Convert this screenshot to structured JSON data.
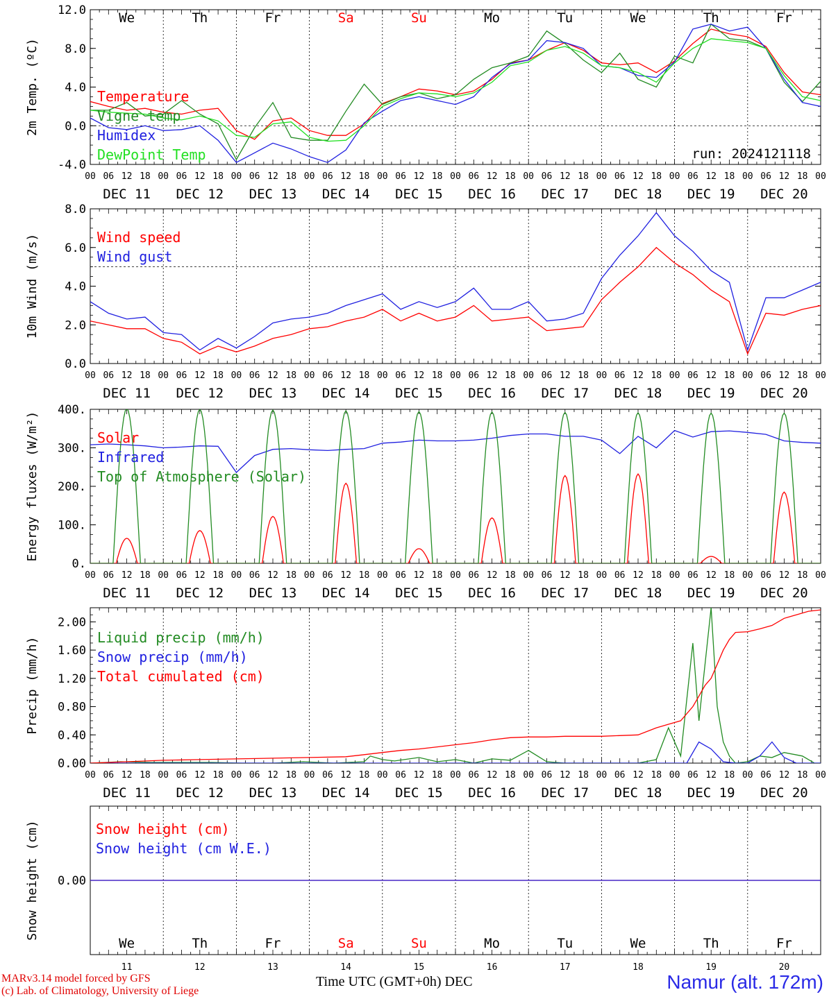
{
  "footer": {
    "model_line": "MARv3.14 model forced by GFS",
    "credit_line": "(c) Lab. of Climatology, University of Liege",
    "xaxis_title": "Time UTC (GMT+0h) DEC",
    "station": "Namur (alt. 172m)"
  },
  "colors": {
    "red": "#ff0000",
    "green": "#228b22",
    "blue": "#2020e0",
    "lightgreen": "#22e022",
    "sunday": "#ff0000"
  },
  "chart_data": [
    {
      "type": "line",
      "id": "temp",
      "ylabel": "2m Temp. (ºC)",
      "ylim": [
        -4.0,
        12.0
      ],
      "yticks": [
        "-4.0",
        "0.0",
        "4.0",
        "8.0",
        "12.0"
      ],
      "ytick_values": [
        -4,
        0,
        4,
        8,
        12
      ],
      "ref_line": 0,
      "x_unit": "hours since 2024-12-11 00 UTC",
      "xlim": [
        0,
        240
      ],
      "weekdays_top": [
        "We",
        "Th",
        "Fr",
        "Sa",
        "Su",
        "Mo",
        "Tu",
        "We",
        "Th",
        "Fr"
      ],
      "run_label": "run: 2024121118",
      "series": [
        {
          "name": "Temperature",
          "color": "red",
          "x": [
            0,
            6,
            12,
            18,
            24,
            30,
            36,
            42,
            48,
            54,
            60,
            66,
            72,
            78,
            84,
            90,
            96,
            102,
            108,
            114,
            120,
            126,
            132,
            138,
            144,
            150,
            156,
            162,
            168,
            174,
            180,
            186,
            192,
            198,
            204,
            210,
            216,
            222,
            228,
            234,
            240
          ],
          "y": [
            2.5,
            2.0,
            1.6,
            1.8,
            1.4,
            1.2,
            1.6,
            1.8,
            -0.5,
            -1.4,
            0.5,
            0.8,
            -0.5,
            -1.0,
            -1.0,
            0.2,
            2.3,
            3.0,
            3.8,
            3.6,
            3.2,
            3.6,
            4.8,
            6.5,
            6.8,
            7.8,
            8.6,
            7.8,
            6.5,
            6.3,
            6.5,
            5.5,
            6.7,
            8.5,
            10.0,
            9.5,
            9.2,
            8.2,
            5.5,
            3.5,
            3.2
          ]
        },
        {
          "name": "Vigne temp",
          "color": "green",
          "x": [
            0,
            6,
            12,
            18,
            24,
            30,
            36,
            42,
            48,
            54,
            60,
            66,
            72,
            78,
            84,
            90,
            96,
            102,
            108,
            114,
            120,
            126,
            132,
            138,
            144,
            150,
            156,
            162,
            168,
            174,
            180,
            186,
            192,
            198,
            204,
            210,
            216,
            222,
            228,
            234,
            240
          ],
          "y": [
            1.6,
            1.6,
            2.4,
            1.0,
            1.2,
            2.6,
            1.2,
            0.2,
            -3.5,
            -0.2,
            2.4,
            -1.2,
            -1.5,
            -1.5,
            1.5,
            4.3,
            2.2,
            3.0,
            3.4,
            2.8,
            3.2,
            4.8,
            6.0,
            6.5,
            7.2,
            9.8,
            8.5,
            6.8,
            5.5,
            7.5,
            4.8,
            4.0,
            7.2,
            6.5,
            10.5,
            9.0,
            8.8,
            8.0,
            4.5,
            2.5,
            4.6
          ]
        },
        {
          "name": "Humidex",
          "color": "blue",
          "x": [
            0,
            6,
            12,
            18,
            24,
            30,
            36,
            42,
            48,
            54,
            60,
            66,
            72,
            78,
            84,
            90,
            96,
            102,
            108,
            114,
            120,
            126,
            132,
            138,
            144,
            150,
            156,
            162,
            168,
            174,
            180,
            186,
            192,
            198,
            204,
            210,
            216,
            222,
            228,
            234,
            240
          ],
          "y": [
            0.8,
            -0.2,
            -0.4,
            0.0,
            -0.5,
            -0.4,
            0.0,
            -1.5,
            -3.8,
            -2.8,
            -1.8,
            -2.4,
            -3.2,
            -3.8,
            -2.5,
            0.3,
            1.5,
            2.6,
            3.0,
            2.6,
            2.2,
            3.0,
            5.0,
            6.4,
            6.8,
            8.8,
            8.6,
            8.0,
            6.2,
            6.0,
            5.2,
            5.0,
            6.6,
            10.0,
            10.5,
            9.8,
            10.2,
            8.0,
            4.8,
            2.4,
            2.0
          ]
        },
        {
          "name": "DewPoint Temp",
          "color": "lightgreen",
          "x": [
            0,
            6,
            12,
            18,
            24,
            30,
            36,
            42,
            48,
            54,
            60,
            66,
            72,
            78,
            84,
            90,
            96,
            102,
            108,
            114,
            120,
            126,
            132,
            138,
            144,
            150,
            156,
            162,
            168,
            174,
            180,
            186,
            192,
            198,
            204,
            210,
            216,
            222,
            228,
            234,
            240
          ],
          "y": [
            1.6,
            1.4,
            1.3,
            1.2,
            0.8,
            0.6,
            1.0,
            0.5,
            -1.0,
            -1.2,
            0.2,
            0.4,
            -1.2,
            -1.6,
            -1.5,
            0.0,
            2.0,
            2.8,
            3.4,
            3.3,
            3.0,
            3.4,
            4.5,
            6.2,
            6.6,
            7.8,
            8.2,
            7.5,
            6.2,
            6.0,
            5.5,
            4.5,
            6.5,
            8.0,
            9.0,
            8.8,
            8.6,
            8.0,
            5.2,
            3.0,
            2.6
          ]
        }
      ]
    },
    {
      "type": "line",
      "id": "wind",
      "ylabel": "10m Wind (m/s)",
      "ylim": [
        0.0,
        8.0
      ],
      "yticks": [
        "0.0",
        "2.0",
        "4.0",
        "6.0",
        "8.0"
      ],
      "ytick_values": [
        0,
        2,
        4,
        6,
        8
      ],
      "ref_line": 5,
      "xlim": [
        0,
        240
      ],
      "series": [
        {
          "name": "Wind speed",
          "color": "red",
          "x": [
            0,
            6,
            12,
            18,
            24,
            30,
            36,
            42,
            48,
            54,
            60,
            66,
            72,
            78,
            84,
            90,
            96,
            102,
            108,
            114,
            120,
            126,
            132,
            138,
            144,
            150,
            156,
            162,
            168,
            174,
            180,
            186,
            192,
            198,
            204,
            210,
            216,
            222,
            228,
            234,
            240
          ],
          "y": [
            2.2,
            2.0,
            1.8,
            1.8,
            1.3,
            1.1,
            0.5,
            0.9,
            0.6,
            0.9,
            1.3,
            1.5,
            1.8,
            1.9,
            2.2,
            2.4,
            2.8,
            2.2,
            2.6,
            2.2,
            2.4,
            3.0,
            2.2,
            2.3,
            2.4,
            1.7,
            1.8,
            1.9,
            3.3,
            4.2,
            5.0,
            6.0,
            5.2,
            4.6,
            3.8,
            3.2,
            0.5,
            2.6,
            2.5,
            2.8,
            3.0
          ]
        },
        {
          "name": "Wind gust",
          "color": "blue",
          "x": [
            0,
            6,
            12,
            18,
            24,
            30,
            36,
            42,
            48,
            54,
            60,
            66,
            72,
            78,
            84,
            90,
            96,
            102,
            108,
            114,
            120,
            126,
            132,
            138,
            144,
            150,
            156,
            162,
            168,
            174,
            180,
            186,
            192,
            198,
            204,
            210,
            216,
            222,
            228,
            234,
            240
          ],
          "y": [
            3.2,
            2.6,
            2.3,
            2.4,
            1.6,
            1.5,
            0.7,
            1.3,
            0.8,
            1.4,
            2.1,
            2.3,
            2.4,
            2.6,
            3.0,
            3.3,
            3.6,
            2.8,
            3.2,
            2.9,
            3.2,
            3.9,
            2.8,
            2.8,
            3.2,
            2.2,
            2.3,
            2.6,
            4.4,
            5.6,
            6.6,
            7.8,
            6.6,
            5.8,
            4.8,
            4.2,
            0.7,
            3.4,
            3.4,
            3.8,
            4.2
          ]
        }
      ]
    },
    {
      "type": "line",
      "id": "energy",
      "ylabel": "Energy fluxes (W/m²)",
      "ylim": [
        0,
        400
      ],
      "yticks": [
        "0.",
        "100.",
        "200.",
        "300.",
        "400."
      ],
      "ytick_values": [
        0,
        100,
        200,
        300,
        400
      ],
      "xlim": [
        0,
        240
      ],
      "series": [
        {
          "name": "Solar",
          "color": "red",
          "peaks": [
            {
              "day": 0,
              "max": 65
            },
            {
              "day": 1,
              "max": 85
            },
            {
              "day": 2,
              "max": 122
            },
            {
              "day": 3,
              "max": 208
            },
            {
              "day": 4,
              "max": 38
            },
            {
              "day": 5,
              "max": 118
            },
            {
              "day": 6,
              "max": 228
            },
            {
              "day": 7,
              "max": 232
            },
            {
              "day": 8,
              "max": 18
            },
            {
              "day": 9,
              "max": 185
            }
          ]
        },
        {
          "name": "Infrared",
          "color": "blue",
          "x": [
            0,
            6,
            12,
            18,
            24,
            30,
            36,
            42,
            48,
            54,
            60,
            66,
            72,
            78,
            84,
            90,
            96,
            102,
            108,
            114,
            120,
            126,
            132,
            138,
            144,
            150,
            156,
            162,
            168,
            174,
            180,
            186,
            192,
            198,
            204,
            210,
            216,
            222,
            228,
            234,
            240
          ],
          "y": [
            308,
            310,
            308,
            305,
            300,
            302,
            305,
            304,
            236,
            280,
            296,
            298,
            295,
            293,
            296,
            298,
            312,
            315,
            320,
            318,
            318,
            320,
            325,
            332,
            336,
            336,
            330,
            330,
            320,
            285,
            330,
            300,
            345,
            328,
            342,
            344,
            340,
            335,
            318,
            314,
            312
          ]
        },
        {
          "name": "Top of Atmosphere (Solar)",
          "color": "green",
          "peaks": [
            {
              "day": 0,
              "max": 402
            },
            {
              "day": 1,
              "max": 400
            },
            {
              "day": 2,
              "max": 398
            },
            {
              "day": 3,
              "max": 396
            },
            {
              "day": 4,
              "max": 394
            },
            {
              "day": 5,
              "max": 393
            },
            {
              "day": 6,
              "max": 392
            },
            {
              "day": 7,
              "max": 391
            },
            {
              "day": 8,
              "max": 390
            },
            {
              "day": 9,
              "max": 390
            }
          ]
        }
      ]
    },
    {
      "type": "line",
      "id": "precip",
      "ylabel": "Precip (mm/h)",
      "ylim": [
        0.0,
        2.2
      ],
      "yticks": [
        "0.00",
        "0.40",
        "0.80",
        "1.20",
        "1.60",
        "2.00"
      ],
      "ytick_values": [
        0,
        0.4,
        0.8,
        1.2,
        1.6,
        2.0
      ],
      "xlim": [
        0,
        240
      ],
      "series": [
        {
          "name": "Liquid precip (mm/h)",
          "color": "green",
          "x": [
            0,
            10,
            20,
            30,
            40,
            50,
            60,
            70,
            80,
            90,
            92,
            96,
            100,
            108,
            114,
            120,
            126,
            132,
            138,
            144,
            150,
            156,
            162,
            168,
            174,
            180,
            186,
            190,
            194,
            198,
            200,
            204,
            206,
            208,
            210,
            212,
            216,
            220,
            224,
            228,
            234,
            238,
            240
          ],
          "y": [
            0,
            0.02,
            0.01,
            0.01,
            0.01,
            0.0,
            0.0,
            0.02,
            0.0,
            0.02,
            0.1,
            0.05,
            0.03,
            0.08,
            0.02,
            0.05,
            0.0,
            0.06,
            0.04,
            0.18,
            0.02,
            0.0,
            0.0,
            0.0,
            0.0,
            0.0,
            0.05,
            0.5,
            0.1,
            1.7,
            0.6,
            2.2,
            0.8,
            0.3,
            0.1,
            0.0,
            0.02,
            0.1,
            0.08,
            0.15,
            0.1,
            0.0,
            0.0
          ]
        },
        {
          "name": "Snow precip (mm/h)",
          "color": "blue",
          "x": [
            0,
            180,
            196,
            200,
            204,
            208,
            212,
            216,
            220,
            224,
            228,
            232,
            236,
            240
          ],
          "y": [
            0,
            0,
            0,
            0.3,
            0.2,
            0.02,
            0,
            0,
            0.1,
            0.3,
            0.08,
            0,
            0,
            0
          ]
        },
        {
          "name": "Total cumulated (cm)",
          "color": "red",
          "x": [
            0,
            12,
            24,
            36,
            48,
            60,
            72,
            84,
            90,
            96,
            102,
            108,
            114,
            120,
            126,
            132,
            138,
            144,
            150,
            156,
            168,
            180,
            186,
            190,
            194,
            198,
            200,
            202,
            204,
            206,
            208,
            210,
            212,
            216,
            220,
            224,
            228,
            232,
            236,
            240
          ],
          "y": [
            0.0,
            0.02,
            0.04,
            0.05,
            0.06,
            0.07,
            0.08,
            0.09,
            0.12,
            0.15,
            0.18,
            0.2,
            0.23,
            0.26,
            0.29,
            0.33,
            0.36,
            0.37,
            0.37,
            0.38,
            0.38,
            0.4,
            0.5,
            0.55,
            0.6,
            0.8,
            0.95,
            1.1,
            1.2,
            1.4,
            1.6,
            1.75,
            1.85,
            1.86,
            1.9,
            1.95,
            2.05,
            2.1,
            2.15,
            2.17
          ]
        }
      ]
    },
    {
      "type": "line",
      "id": "snow",
      "ylabel": "Snow height (cm)",
      "ylim": [
        -1,
        1
      ],
      "yticks": [
        "0.00"
      ],
      "ytick_values": [
        0
      ],
      "xlim": [
        0,
        240
      ],
      "weekdays_bottom": [
        "We",
        "Th",
        "Fr",
        "Sa",
        "Su",
        "Mo",
        "Tu",
        "We",
        "Th",
        "Fr"
      ],
      "day_numbers": [
        "11",
        "12",
        "13",
        "14",
        "15",
        "16",
        "17",
        "18",
        "19",
        "20"
      ],
      "series": [
        {
          "name": "Snow height (cm)",
          "color": "red",
          "x": [
            0,
            240
          ],
          "y": [
            0,
            0
          ]
        },
        {
          "name": "Snow height (cm W.E.)",
          "color": "blue",
          "x": [
            0,
            240
          ],
          "y": [
            0,
            0
          ]
        }
      ]
    }
  ],
  "x_axis": {
    "hour_ticks": [
      "00",
      "06",
      "12",
      "18"
    ],
    "end_tick": "00",
    "dates": [
      "DEC 11",
      "DEC 12",
      "DEC 13",
      "DEC 14",
      "DEC 15",
      "DEC 16",
      "DEC 17",
      "DEC 18",
      "DEC 19",
      "DEC 20"
    ],
    "weekend_days": [
      3,
      4
    ]
  }
}
